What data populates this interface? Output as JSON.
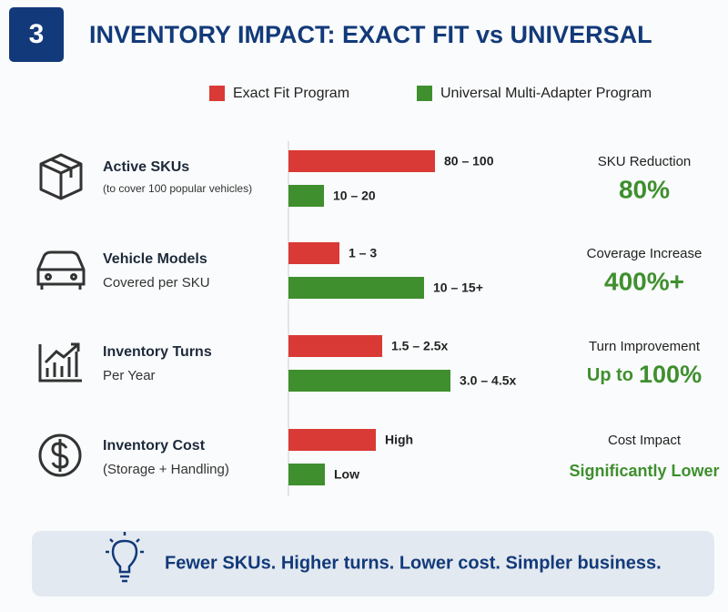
{
  "header": {
    "number": "3",
    "title": "INVENTORY IMPACT: EXACT FIT vs UNIVERSAL"
  },
  "legend": [
    "Exact Fit Program",
    "Universal Multi-Adapter Program"
  ],
  "rows": [
    {
      "title": "Active SKUs",
      "subtitle": "(to cover 100 popular vehicles)",
      "exact_fit": "80 – 100",
      "universal": "10 – 20",
      "metric": "SKU Reduction",
      "result": "80%"
    },
    {
      "title": "Vehicle Models",
      "subtitle": "Covered per SKU",
      "exact_fit": "1 – 3",
      "universal": "10 – 15+",
      "metric": "Coverage Increase",
      "result": "400%+"
    },
    {
      "title": "Inventory Turns",
      "subtitle": "Per Year",
      "exact_fit": "1.5 – 2.5x",
      "universal": "3.0 – 4.5x",
      "metric": "Turn Improvement",
      "result_prefix": "Up to",
      "result": "100%"
    },
    {
      "title": "Inventory Cost",
      "subtitle": "(Storage + Handling)",
      "exact_fit": "High",
      "universal": "Low",
      "metric": "Cost Impact",
      "result": "Significantly Lower"
    }
  ],
  "footer": "Fewer SKUs. Higher turns. Lower cost. Simpler business."
}
